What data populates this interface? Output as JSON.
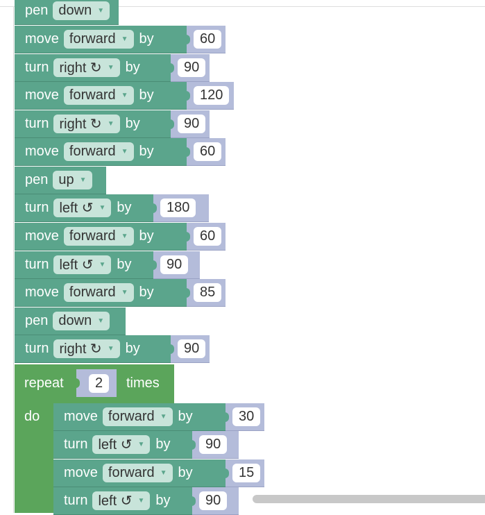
{
  "blocks": [
    {
      "kw": "pen",
      "dd": "down",
      "by": "",
      "value": ""
    },
    {
      "kw": "move",
      "dd": "forward",
      "by": "by",
      "value": "60"
    },
    {
      "kw": "turn",
      "dd": "right ↻",
      "by": "by",
      "value": "90"
    },
    {
      "kw": "move",
      "dd": "forward",
      "by": "by",
      "value": "120"
    },
    {
      "kw": "turn",
      "dd": "right ↻",
      "by": "by",
      "value": "90"
    },
    {
      "kw": "move",
      "dd": "forward",
      "by": "by",
      "value": "60"
    },
    {
      "kw": "pen",
      "dd": "up",
      "by": "",
      "value": ""
    },
    {
      "kw": "turn",
      "dd": "left ↺",
      "by": "by",
      "value": "180"
    },
    {
      "kw": "move",
      "dd": "forward",
      "by": "by",
      "value": "60"
    },
    {
      "kw": "turn",
      "dd": "left ↺",
      "by": "by",
      "value": "90"
    },
    {
      "kw": "move",
      "dd": "forward",
      "by": "by",
      "value": "85"
    },
    {
      "kw": "pen",
      "dd": "down",
      "by": "",
      "value": ""
    },
    {
      "kw": "turn",
      "dd": "right ↻",
      "by": "by",
      "value": "90"
    }
  ],
  "repeat": {
    "label": "repeat",
    "count": "2",
    "times": "times",
    "do": "do",
    "inner": [
      {
        "kw": "move",
        "dd": "forward",
        "by": "by",
        "value": "30"
      },
      {
        "kw": "turn",
        "dd": "left ↺",
        "by": "by",
        "value": "90"
      },
      {
        "kw": "move",
        "dd": "forward",
        "by": "by",
        "value": "15"
      },
      {
        "kw": "turn",
        "dd": "left ↺",
        "by": "by",
        "value": "90"
      }
    ]
  },
  "colors": {
    "motion": "#5ba58c",
    "loop": "#5ba55b",
    "number": "#b4bcda"
  }
}
